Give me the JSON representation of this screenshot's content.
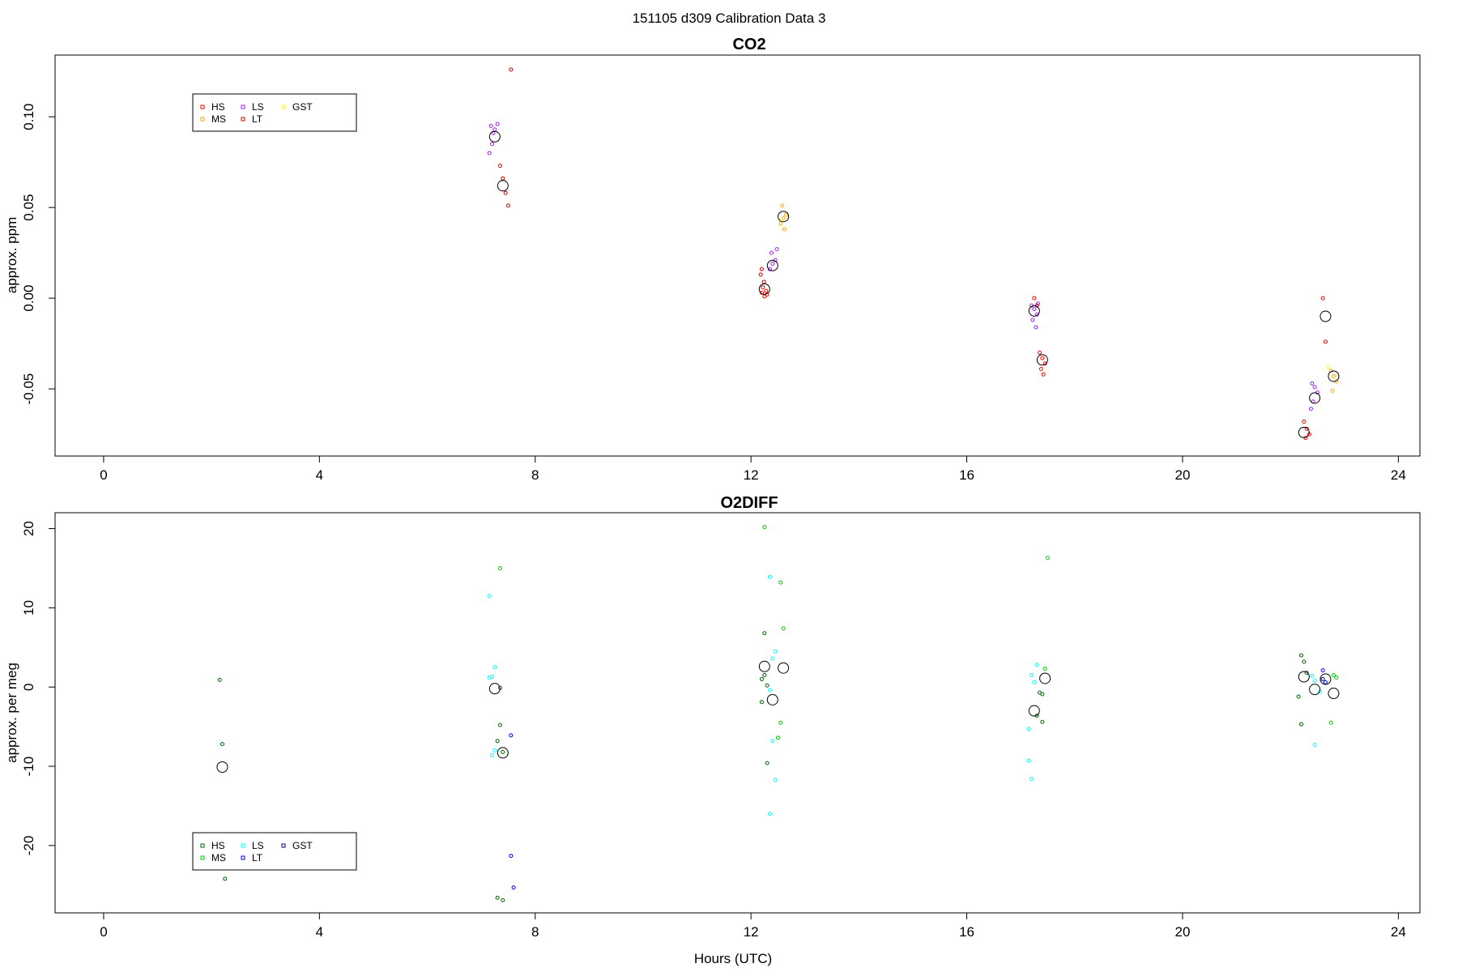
{
  "figure_title": "151105   d309   Calibration Data 3",
  "xlabel": "Hours (UTC)",
  "chart_data": [
    {
      "type": "scatter",
      "title": "CO2",
      "ylabel": "approx. ppm",
      "xlim": [
        -0.9,
        24.4
      ],
      "ylim": [
        -0.087,
        0.134
      ],
      "xticks": [
        0,
        4,
        8,
        12,
        16,
        20,
        24
      ],
      "yticks": [
        -0.05,
        0.0,
        0.05,
        0.1
      ],
      "ytick_labels": [
        "-0.05",
        "0.00",
        "0.05",
        "0.10"
      ],
      "legend": {
        "placement": "top-left",
        "entries": [
          {
            "name": "HS",
            "color": "#ff0000"
          },
          {
            "name": "MS",
            "color": "#ffa500"
          },
          {
            "name": "LS",
            "color": "#a020f0"
          },
          {
            "name": "LT",
            "color": "#cd0000"
          },
          {
            "name": "GST",
            "color": "#ffff00"
          }
        ]
      },
      "series": [
        {
          "name": "HS",
          "color": "#ff0000",
          "points": [
            [
              12.2,
              0.003
            ],
            [
              12.25,
              0.001
            ],
            [
              12.3,
              0.002
            ],
            [
              12.22,
              0.006
            ],
            [
              12.28,
              0.004
            ],
            [
              17.35,
              -0.03
            ],
            [
              17.4,
              -0.033
            ],
            [
              17.45,
              -0.036
            ],
            [
              17.38,
              -0.039
            ],
            [
              17.42,
              -0.042
            ],
            [
              22.25,
              -0.068
            ],
            [
              22.3,
              -0.072
            ],
            [
              22.35,
              -0.075
            ],
            [
              22.28,
              -0.077
            ]
          ]
        },
        {
          "name": "MS",
          "color": "#ffa500",
          "points": [
            [
              12.55,
              0.041
            ],
            [
              12.6,
              0.044
            ],
            [
              12.65,
              0.046
            ],
            [
              12.58,
              0.051
            ],
            [
              12.62,
              0.038
            ],
            [
              22.75,
              -0.04
            ],
            [
              22.8,
              -0.043
            ],
            [
              22.85,
              -0.046
            ],
            [
              22.78,
              -0.051
            ]
          ]
        },
        {
          "name": "LS",
          "color": "#a020f0",
          "points": [
            [
              7.15,
              0.08
            ],
            [
              7.2,
              0.085
            ],
            [
              7.25,
              0.093
            ],
            [
              7.18,
              0.095
            ],
            [
              7.3,
              0.096
            ],
            [
              7.22,
              0.091
            ],
            [
              12.35,
              0.016
            ],
            [
              12.4,
              0.019
            ],
            [
              12.45,
              0.021
            ],
            [
              12.38,
              0.025
            ],
            [
              12.48,
              0.027
            ],
            [
              17.2,
              -0.004
            ],
            [
              17.25,
              -0.006
            ],
            [
              17.3,
              -0.009
            ],
            [
              17.22,
              -0.012
            ],
            [
              17.28,
              -0.016
            ],
            [
              17.32,
              -0.003
            ],
            [
              22.4,
              -0.047
            ],
            [
              22.45,
              -0.049
            ],
            [
              22.5,
              -0.052
            ],
            [
              22.42,
              -0.057
            ],
            [
              22.38,
              -0.061
            ]
          ]
        },
        {
          "name": "LT",
          "color": "#cd0000",
          "points": [
            [
              7.35,
              0.073
            ],
            [
              7.4,
              0.066
            ],
            [
              7.45,
              0.058
            ],
            [
              7.5,
              0.051
            ],
            [
              7.55,
              0.126
            ],
            [
              12.18,
              0.013
            ],
            [
              12.2,
              0.016
            ],
            [
              12.24,
              0.009
            ],
            [
              17.25,
              0.0
            ],
            [
              17.3,
              -0.004
            ],
            [
              22.6,
              0.0
            ],
            [
              22.65,
              -0.024
            ]
          ]
        },
        {
          "name": "GST",
          "color": "#ffff00",
          "points": [
            [
              12.55,
              0.043
            ],
            [
              22.7,
              -0.038
            ]
          ]
        }
      ],
      "means": [
        [
          7.25,
          0.089
        ],
        [
          7.4,
          0.062
        ],
        [
          12.25,
          0.005
        ],
        [
          12.4,
          0.018
        ],
        [
          12.6,
          0.045
        ],
        [
          17.25,
          -0.007
        ],
        [
          17.4,
          -0.034
        ],
        [
          22.25,
          -0.074
        ],
        [
          22.45,
          -0.055
        ],
        [
          22.65,
          -0.01
        ],
        [
          22.8,
          -0.043
        ]
      ]
    },
    {
      "type": "scatter",
      "title": "O2DIFF",
      "ylabel": "approx. per meg",
      "xlim": [
        -0.9,
        24.4
      ],
      "ylim": [
        -28.5,
        22
      ],
      "xticks": [
        0,
        4,
        8,
        12,
        16,
        20,
        24
      ],
      "yticks": [
        -20,
        -10,
        0,
        10,
        20
      ],
      "ytick_labels": [
        "-20",
        "-10",
        "0",
        "10",
        "20"
      ],
      "legend": {
        "placement": "bottom-left",
        "entries": [
          {
            "name": "HS",
            "color": "#006400"
          },
          {
            "name": "MS",
            "color": "#00cd00"
          },
          {
            "name": "LS",
            "color": "#00ffff"
          },
          {
            "name": "LT",
            "color": "#0000ff"
          },
          {
            "name": "GST",
            "color": "#00008b"
          }
        ]
      },
      "series": [
        {
          "name": "HS",
          "color": "#006400",
          "points": [
            [
              2.15,
              0.9
            ],
            [
              2.2,
              -7.2
            ],
            [
              2.25,
              -24.2
            ],
            [
              7.3,
              -26.6
            ],
            [
              7.4,
              -26.9
            ],
            [
              7.35,
              -4.8
            ],
            [
              7.3,
              -6.8
            ],
            [
              7.4,
              -8.2
            ],
            [
              7.35,
              -0.1
            ],
            [
              12.25,
              6.8
            ],
            [
              12.3,
              -9.6
            ],
            [
              12.2,
              1.0
            ],
            [
              12.25,
              1.5
            ],
            [
              12.2,
              -1.9
            ],
            [
              12.3,
              0.2
            ],
            [
              17.35,
              -0.7
            ],
            [
              17.4,
              -0.9
            ],
            [
              17.3,
              -3.6
            ],
            [
              17.4,
              -4.4
            ],
            [
              22.2,
              4.0
            ],
            [
              22.25,
              3.2
            ],
            [
              22.3,
              1.8
            ],
            [
              22.15,
              -1.2
            ],
            [
              22.2,
              -4.7
            ]
          ]
        },
        {
          "name": "MS",
          "color": "#00cd00",
          "points": [
            [
              7.35,
              15.0
            ],
            [
              12.55,
              13.2
            ],
            [
              12.6,
              7.4
            ],
            [
              12.55,
              -4.5
            ],
            [
              12.5,
              -6.4
            ],
            [
              12.25,
              20.2
            ],
            [
              17.5,
              16.3
            ],
            [
              17.45,
              2.3
            ],
            [
              22.75,
              -4.5
            ],
            [
              22.8,
              1.5
            ],
            [
              22.85,
              1.2
            ]
          ]
        },
        {
          "name": "LS",
          "color": "#00ffff",
          "points": [
            [
              7.15,
              11.5
            ],
            [
              7.25,
              2.5
            ],
            [
              7.2,
              1.3
            ],
            [
              7.15,
              1.2
            ],
            [
              7.25,
              -8.0
            ],
            [
              7.2,
              -8.6
            ],
            [
              12.35,
              13.9
            ],
            [
              12.45,
              4.5
            ],
            [
              12.4,
              3.6
            ],
            [
              12.35,
              -0.4
            ],
            [
              12.4,
              -6.8
            ],
            [
              12.45,
              -11.7
            ],
            [
              12.35,
              -16.0
            ],
            [
              17.2,
              1.5
            ],
            [
              17.3,
              2.8
            ],
            [
              17.25,
              0.6
            ],
            [
              17.15,
              -5.3
            ],
            [
              17.15,
              -9.3
            ],
            [
              17.2,
              -11.6
            ],
            [
              22.4,
              1.4
            ],
            [
              22.45,
              0.8
            ],
            [
              22.55,
              -0.6
            ],
            [
              22.45,
              -7.3
            ]
          ]
        },
        {
          "name": "LT",
          "color": "#0000ff",
          "points": [
            [
              7.55,
              -6.1
            ],
            [
              7.55,
              -21.3
            ],
            [
              7.6,
              -25.3
            ],
            [
              22.6,
              2.1
            ],
            [
              22.65,
              0.6
            ]
          ]
        },
        {
          "name": "GST",
          "color": "#00008b",
          "points": [
            [
              22.6,
              1.0
            ]
          ]
        }
      ],
      "means": [
        [
          2.2,
          -10.1
        ],
        [
          7.25,
          -0.2
        ],
        [
          7.4,
          -8.3
        ],
        [
          12.25,
          2.6
        ],
        [
          12.4,
          -1.6
        ],
        [
          12.6,
          2.4
        ],
        [
          17.25,
          -3.0
        ],
        [
          17.45,
          1.1
        ],
        [
          22.25,
          1.3
        ],
        [
          22.45,
          -0.3
        ],
        [
          22.65,
          1.0
        ],
        [
          22.8,
          -0.8
        ]
      ]
    }
  ]
}
